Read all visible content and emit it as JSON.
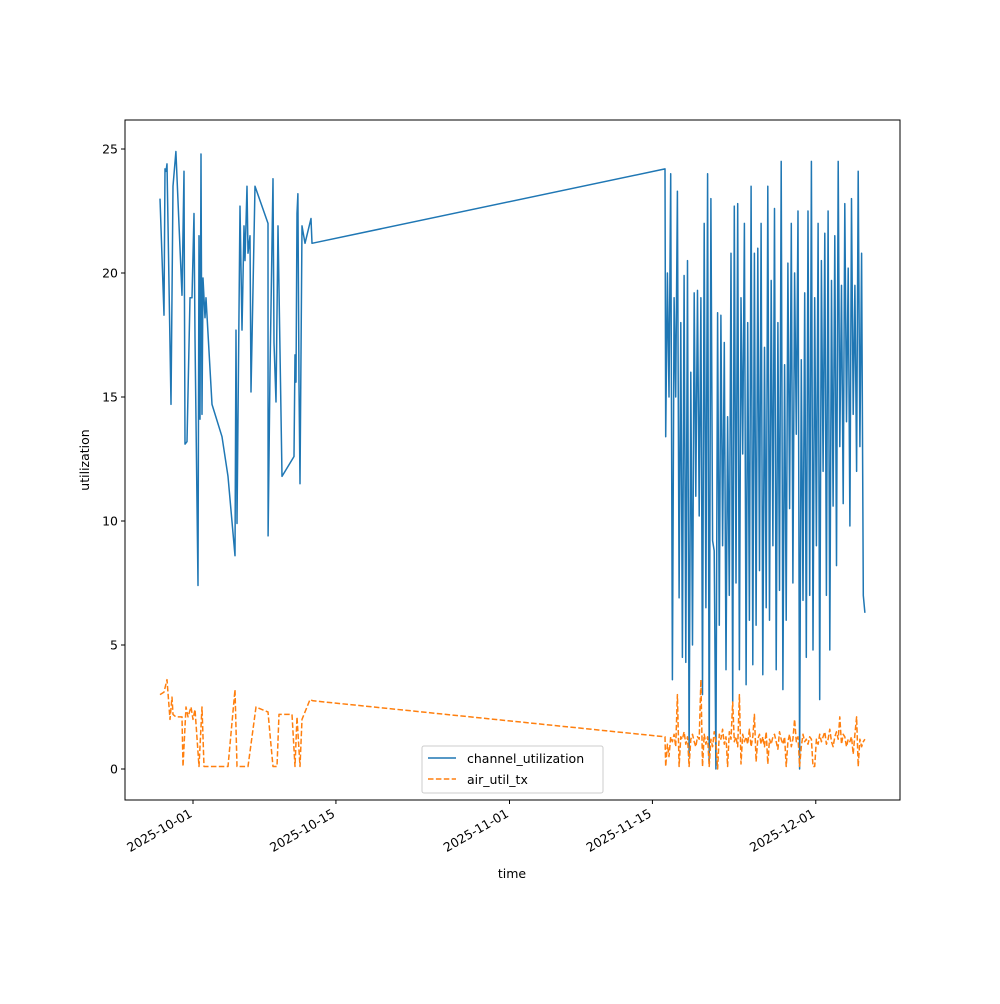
{
  "chart_data": {
    "type": "line",
    "xlabel": "time",
    "ylabel": "utilization",
    "x_unit": "days since 2025-10-01",
    "xlim": [
      -6.66,
      69.25
    ],
    "ylim": [
      -1.25,
      26.17
    ],
    "grid": false,
    "legend_placement": "lower-center",
    "x_ticks": [
      {
        "value": 0,
        "label": "2025-10-01"
      },
      {
        "value": 14,
        "label": "2025-10-15"
      },
      {
        "value": 31,
        "label": "2025-11-01"
      },
      {
        "value": 45,
        "label": "2025-11-15"
      },
      {
        "value": 61,
        "label": "2025-12-01"
      }
    ],
    "y_ticks": [
      {
        "value": 0,
        "label": "0"
      },
      {
        "value": 5,
        "label": "5"
      },
      {
        "value": 10,
        "label": "10"
      },
      {
        "value": 15,
        "label": "15"
      },
      {
        "value": 20,
        "label": "20"
      },
      {
        "value": 25,
        "label": "25"
      }
    ],
    "series": [
      {
        "name": "channel_utilization",
        "color": "#1f77b4",
        "dash": "solid",
        "x": [
          -3.23,
          -2.84,
          -2.74,
          -2.64,
          -2.55,
          -2.15,
          -1.96,
          -1.67,
          -1.08,
          -0.88,
          -0.78,
          -0.59,
          -0.29,
          -0.1,
          0.1,
          0.2,
          0.49,
          0.59,
          0.69,
          0.78,
          0.88,
          0.98,
          1.18,
          1.27,
          1.86,
          2.84,
          3.43,
          4.11,
          4.21,
          4.31,
          4.6,
          4.8,
          5.0,
          5.09,
          5.29,
          5.39,
          5.58,
          5.68,
          6.07,
          7.35,
          7.36,
          7.54,
          7.84,
          7.93,
          8.13,
          8.33,
          8.72,
          9.89,
          9.99,
          10.09,
          10.19,
          10.28,
          10.38,
          10.48,
          10.68,
          10.97,
          11.56,
          11.66,
          46.23
        ],
        "y": [
          23,
          18.3,
          24.2,
          24.1,
          24.4,
          14.7,
          23.5,
          24.9,
          19.1,
          24.1,
          13.1,
          13.2,
          19,
          19,
          22.4,
          17.4,
          7.4,
          21.5,
          14.1,
          24.8,
          14.3,
          19.8,
          18.2,
          19,
          14.7,
          13.4,
          11.8,
          8.6,
          17.7,
          9.9,
          22.7,
          17.7,
          21.9,
          20.5,
          23.5,
          20.8,
          21.5,
          15.2,
          23.5,
          22,
          9.4,
          16,
          23.8,
          17.2,
          14.8,
          21.9,
          11.8,
          12.6,
          16.7,
          15.6,
          22.4,
          23.2,
          15.5,
          11.5,
          21.9,
          21.2,
          22.2,
          21.2,
          24.2
        ],
        "dense_segment": {
          "start_day": 46.3,
          "step_days": 0.164,
          "y": [
            13.4,
            20,
            15,
            24,
            3.6,
            19,
            15,
            23.3,
            6.9,
            18,
            4.5,
            19.9,
            4.3,
            20.5,
            0.5,
            16,
            5,
            19.2,
            11,
            19.3,
            10.2,
            19,
            3,
            22,
            6.5,
            24,
            0.2,
            23,
            9.2,
            8.8,
            0,
            18.4,
            5.8,
            18.3,
            9,
            17.2,
            4,
            14.2,
            7,
            20.8,
            2.7,
            22.7,
            7.5,
            22.8,
            4,
            19,
            12.7,
            22,
            3.4,
            18,
            6,
            23.5,
            4.2,
            20.8,
            5.8,
            21,
            8,
            22,
            3.8,
            17,
            6.5,
            23.5,
            6,
            19.7,
            9,
            22.6,
            4,
            18,
            7.2,
            24.5,
            3.2,
            16.3,
            6,
            20.4,
            10.5,
            22,
            7.5,
            20,
            13.5,
            22.5,
            0,
            16.5,
            6.8,
            19.2,
            4.5,
            22.5,
            7,
            24.5,
            4.8,
            19,
            9,
            22,
            2.8,
            20.5,
            12,
            21.6,
            7,
            22.5,
            4.8,
            19.7,
            10.6,
            21.5,
            8.2,
            24.5,
            13,
            19.5,
            10.7,
            22.8,
            14,
            20.2,
            9.8,
            23,
            14.3,
            19.5,
            12,
            24.1,
            13,
            20.8,
            7,
            6.3
          ]
        }
      },
      {
        "name": "air_util_tx",
        "color": "#ff7f0e",
        "dash": "dashed",
        "x": [
          -3.23,
          -2.84,
          -2.55,
          -2.25,
          -2.06,
          -1.96,
          -1.67,
          -1.08,
          -0.98,
          -0.69,
          -0.49,
          -0.2,
          0,
          0.2,
          0.59,
          0.88,
          1.08,
          1.67,
          3.43,
          4.11,
          4.31,
          4.51,
          5.39,
          6.17,
          7.35,
          7.54,
          7.84,
          8.23,
          8.42,
          9.7,
          9.99,
          10.19,
          10.48,
          10.68,
          11.46,
          11.75,
          46.23
        ],
        "y": [
          3.0,
          3.1,
          3.6,
          2.0,
          2.9,
          2.2,
          2.1,
          2.1,
          0.1,
          2.5,
          2.1,
          2.5,
          2.0,
          2.4,
          0.1,
          2.5,
          0.1,
          0.1,
          0.1,
          3.2,
          0.1,
          0.1,
          0.1,
          2.5,
          2.3,
          1.4,
          0.1,
          0.1,
          2.2,
          2.2,
          0.1,
          2.1,
          0.1,
          2.0,
          2.8,
          2.75,
          1.3
        ],
        "dense_segment": {
          "start_day": 46.3,
          "step_days": 0.164,
          "y": [
            0.1,
            1.0,
            0.5,
            1.3,
            1.1,
            1.4,
            0.9,
            3.0,
            0.1,
            1.3,
            1.2,
            1.5,
            1.0,
            1.3,
            0.1,
            1.2,
            1.4,
            1.1,
            0.9,
            1.3,
            1.2,
            3.6,
            0.1,
            1.4,
            1.0,
            1.3,
            0.1,
            1.2,
            0.9,
            1.5,
            1.1,
            0.0,
            1.4,
            1.2,
            1.6,
            1.0,
            1.3,
            0.1,
            1.5,
            1.2,
            2.7,
            1.1,
            1.3,
            0.9,
            3.0,
            0.2,
            1.4,
            1.1,
            1.3,
            1.0,
            1.6,
            0.9,
            1.3,
            2.2,
            0.3,
            1.2,
            1.4,
            1.0,
            1.3,
            0.9,
            1.5,
            0.2,
            1.2,
            1.0,
            1.3,
            1.4,
            1.1,
            0.8,
            1.5,
            1.2,
            1.0,
            1.3,
            0.1,
            1.1,
            1.4,
            0.9,
            1.2,
            2.0,
            1.1,
            1.3,
            0.1,
            0.9,
            1.4,
            1.1,
            1.2,
            1.0,
            1.3,
            1.2,
            0.1,
            0.1,
            1.2,
            1.0,
            1.4,
            1.1,
            1.3,
            1.5,
            1.0,
            1.2,
            1.6,
            1.1,
            0.9,
            1.3,
            1.5,
            1.2,
            2.1,
            1.0,
            1.4,
            1.3,
            0.9,
            1.2,
            1.1,
            1.3,
            0.6,
            1.4,
            2.1,
            0.1,
            1.2,
            0.9,
            1.1,
            1.2
          ]
        }
      }
    ]
  }
}
